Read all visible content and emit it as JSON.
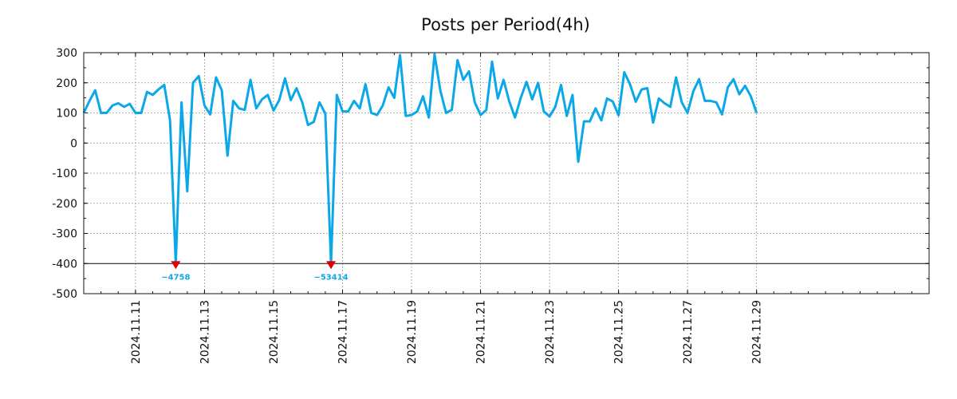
{
  "chart_data": {
    "type": "line",
    "title": "Posts per Period(4h)",
    "xlabel": "",
    "ylabel": "",
    "ylim": [
      -500,
      300
    ],
    "yticks": [
      300,
      200,
      100,
      0,
      -100,
      -200,
      -300,
      -400,
      -500
    ],
    "ytick_labels": [
      "300",
      "200",
      "100",
      "0",
      "-100",
      "-200",
      "-300",
      "-400",
      "-500"
    ],
    "xlim": [
      0,
      147
    ],
    "xticks": [
      {
        "index": 9,
        "label": "2024.11.11"
      },
      {
        "index": 21,
        "label": "2024.11.13"
      },
      {
        "index": 33,
        "label": "2024.11.15"
      },
      {
        "index": 45,
        "label": "2024.11.17"
      },
      {
        "index": 57,
        "label": "2024.11.19"
      },
      {
        "index": 69,
        "label": "2024.11.21"
      },
      {
        "index": 81,
        "label": "2024.11.23"
      },
      {
        "index": 93,
        "label": "2024.11.25"
      },
      {
        "index": 105,
        "label": "2024.11.27"
      },
      {
        "index": 117,
        "label": "2024.11.29"
      }
    ],
    "grid": true,
    "clip_value": -400,
    "series": [
      {
        "name": "posts",
        "color": "#0aa8e8",
        "values": [
          100,
          140,
          175,
          100,
          100,
          125,
          132,
          120,
          130,
          100,
          100,
          170,
          160,
          178,
          193,
          75,
          -400,
          135,
          -160,
          200,
          222,
          125,
          95,
          218,
          175,
          -42,
          140,
          115,
          110,
          210,
          115,
          145,
          160,
          108,
          143,
          215,
          142,
          182,
          135,
          60,
          70,
          135,
          98,
          -400,
          160,
          105,
          105,
          140,
          115,
          195,
          100,
          93,
          125,
          185,
          150,
          292,
          90,
          93,
          105,
          155,
          85,
          295,
          175,
          100,
          110,
          275,
          210,
          238,
          135,
          93,
          110,
          270,
          148,
          210,
          138,
          85,
          150,
          203,
          145,
          200,
          105,
          88,
          120,
          193,
          90,
          160,
          -62,
          72,
          72,
          115,
          75,
          148,
          138,
          92,
          235,
          195,
          137,
          178,
          182,
          68,
          148,
          132,
          120,
          218,
          135,
          100,
          172,
          212,
          140,
          140,
          135,
          95,
          185,
          212,
          162,
          190,
          155,
          100
        ]
      }
    ],
    "annotations": [
      {
        "index": 16,
        "value": -400,
        "label": "−4758"
      },
      {
        "index": 43,
        "value": -400,
        "label": "−53414"
      }
    ]
  }
}
